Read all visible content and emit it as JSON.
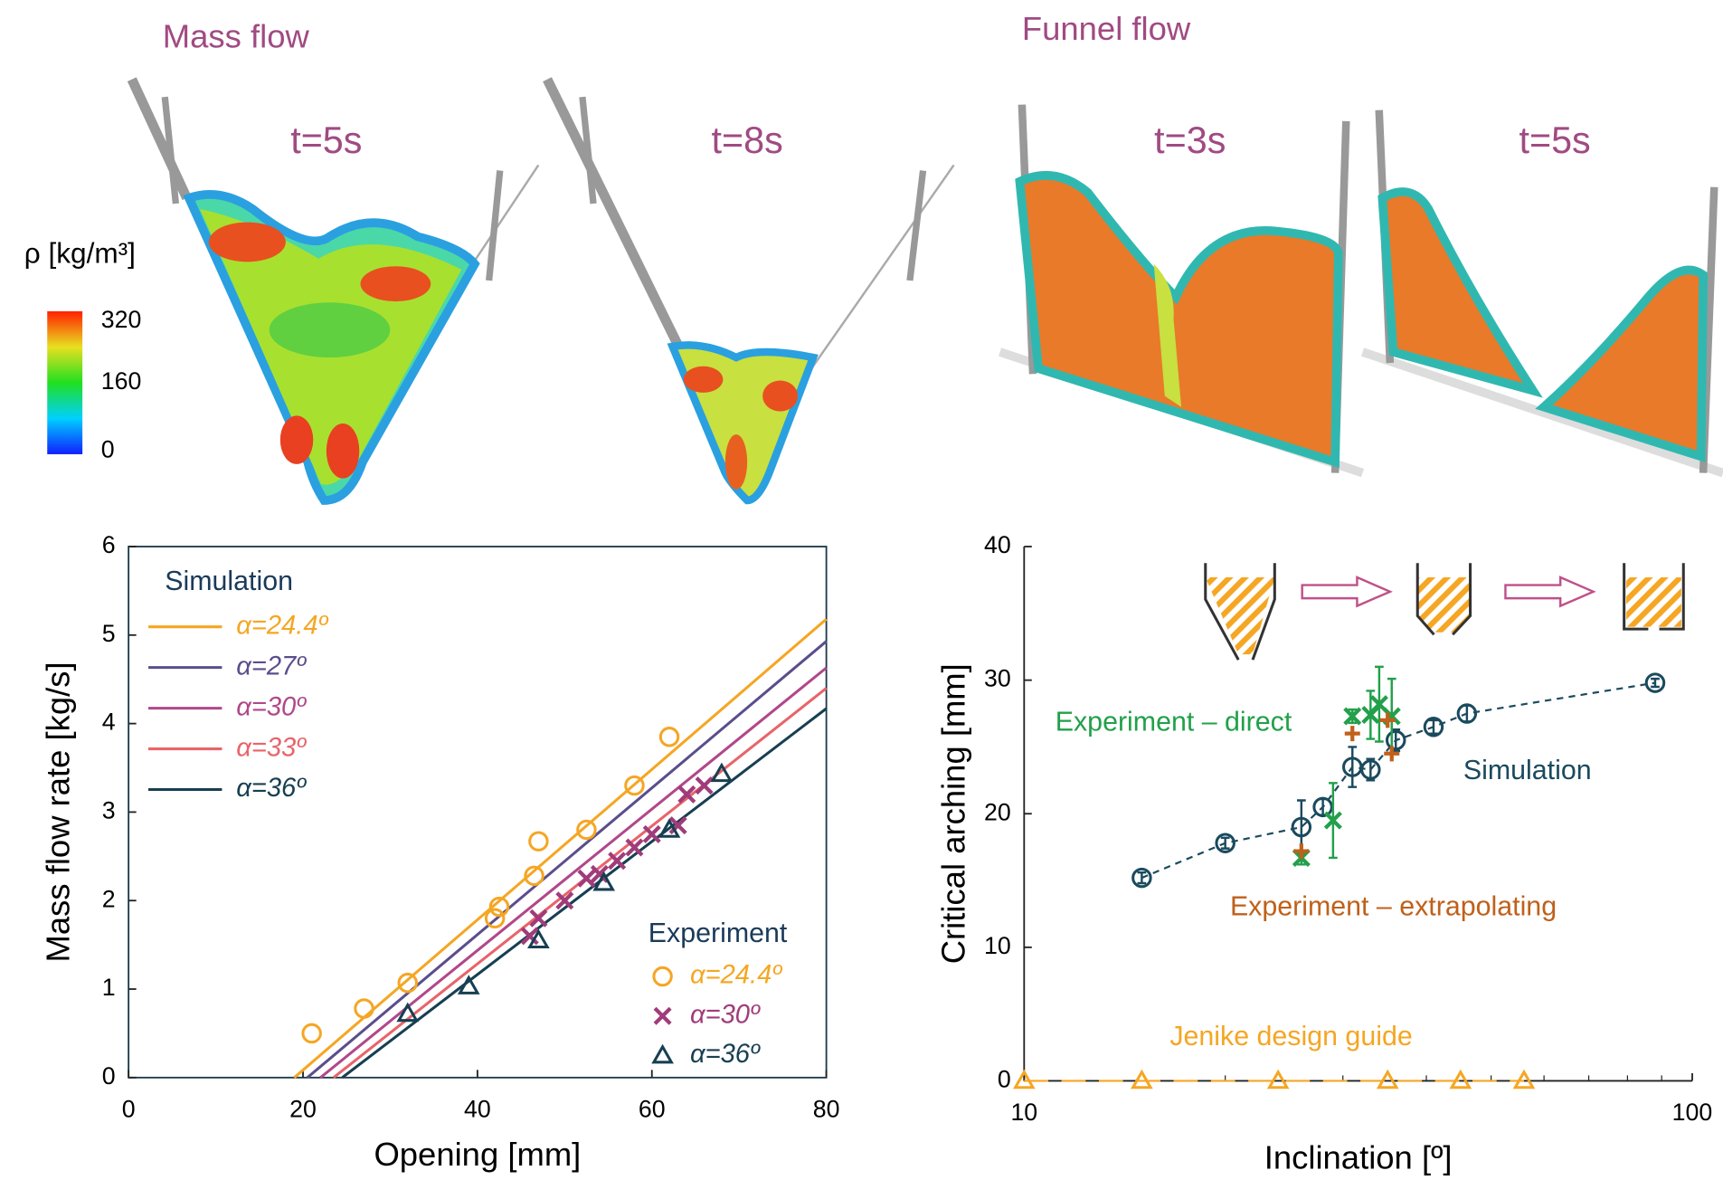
{
  "panels": {
    "mass_flow": "Mass flow",
    "funnel_flow": "Funnel flow",
    "times": [
      "t=5s",
      "t=8s",
      "t=3s",
      "t=5s"
    ]
  },
  "colorbar": {
    "label": "ρ [kg/m³]",
    "lim": [
      0,
      320
    ],
    "ticks": [
      0,
      160,
      320
    ]
  },
  "chart_data": [
    {
      "type": "line",
      "xlabel": "Opening [mm]",
      "ylabel": "Mass flow rate [kg/s]",
      "xlim": [
        0,
        80
      ],
      "xticks": [
        0,
        20,
        40,
        60,
        80
      ],
      "ylim": [
        0,
        6
      ],
      "yticks": [
        0,
        1,
        2,
        3,
        4,
        5,
        6
      ],
      "simulation_title": "Simulation",
      "experiment_title": "Experiment",
      "series": [
        {
          "name": "α=24.4º",
          "color": "#f5a623",
          "marker": "line",
          "x": [
            19,
            80
          ],
          "values": [
            0,
            5.18
          ]
        },
        {
          "name": "α=27º",
          "color": "#5b4e8c",
          "marker": "line",
          "x": [
            20.5,
            80
          ],
          "values": [
            0,
            4.93
          ]
        },
        {
          "name": "α=30º",
          "color": "#b0488a",
          "marker": "line",
          "x": [
            22,
            80
          ],
          "values": [
            0,
            4.63
          ]
        },
        {
          "name": "α=33º",
          "color": "#e8646a",
          "marker": "line",
          "x": [
            23.5,
            80
          ],
          "values": [
            0,
            4.4
          ]
        },
        {
          "name": "α=36º",
          "color": "#173f52",
          "marker": "line",
          "x": [
            24.5,
            80
          ],
          "values": [
            0,
            4.17
          ]
        },
        {
          "name": "α=24.4º",
          "color": "#f5a623",
          "marker": "circle",
          "x": [
            21,
            27,
            32,
            42,
            42.5,
            46.5,
            47,
            52.5,
            58,
            62
          ],
          "values": [
            0.5,
            0.78,
            1.07,
            1.8,
            1.93,
            2.28,
            2.67,
            2.8,
            3.3,
            3.85
          ]
        },
        {
          "name": "α=30º",
          "color": "#a03c7a",
          "marker": "x",
          "x": [
            46,
            47,
            50,
            52.5,
            54,
            56,
            58,
            60,
            63,
            64,
            66
          ],
          "values": [
            1.6,
            1.8,
            2.0,
            2.25,
            2.3,
            2.45,
            2.6,
            2.75,
            2.85,
            3.2,
            3.3
          ]
        },
        {
          "name": "α=36º",
          "color": "#173f52",
          "marker": "triangle",
          "x": [
            32,
            39,
            47,
            54.5,
            62,
            68
          ],
          "values": [
            0.72,
            1.03,
            1.55,
            2.2,
            2.8,
            3.43
          ]
        }
      ]
    },
    {
      "type": "scatter",
      "xscale": "log",
      "xlabel": "Inclination [º]",
      "ylabel": "Critical arching [mm]",
      "xlim": [
        10,
        100
      ],
      "xticks": [
        10,
        100
      ],
      "ylim": [
        0,
        40
      ],
      "yticks": [
        0,
        10,
        20,
        30,
        40
      ],
      "series": [
        {
          "name": "Simulation",
          "color": "#1a4a5e",
          "marker": "circle",
          "connect": true,
          "x": [
            15,
            20,
            26,
            28,
            31,
            33,
            36,
            41,
            46,
            88
          ],
          "values": [
            15.2,
            17.8,
            19,
            20.5,
            23.5,
            23.3,
            25.5,
            26.5,
            27.5,
            29.8
          ],
          "errors": [
            0.4,
            0.4,
            2,
            0.6,
            1.5,
            0.8,
            0.8,
            0.5,
            0.6,
            0.3
          ]
        },
        {
          "name": "Experiment – direct",
          "color": "#22a04a",
          "marker": "x",
          "x": [
            26,
            29,
            31,
            33,
            34,
            35.5
          ],
          "values": [
            16.7,
            19.5,
            27.3,
            27.4,
            28.2,
            27.3
          ],
          "errors": [
            0.5,
            2.8,
            0.5,
            1.8,
            2.8,
            2.8
          ]
        },
        {
          "name": "Experiment – extrapolating",
          "color": "#c0601a",
          "marker": "plus",
          "x": [
            26,
            31,
            35,
            35.5
          ],
          "values": [
            17.2,
            26,
            27,
            24.5
          ]
        },
        {
          "name": "Jenike design guide",
          "color": "#f5a623",
          "marker": "triangle",
          "connect": true,
          "x": [
            10,
            15,
            24,
            35,
            45,
            56
          ],
          "values": [
            0,
            0,
            0,
            0,
            0,
            0
          ]
        }
      ]
    }
  ]
}
